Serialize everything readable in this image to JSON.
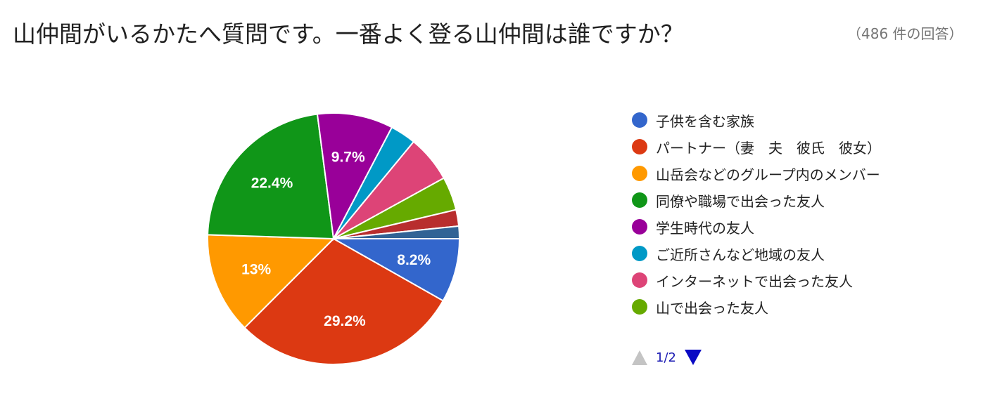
{
  "header": {
    "title": "山仲間がいるかたへ質問です。一番よく登る山仲間は誰ですか？",
    "response_count": "（486 件の回答）"
  },
  "chart_data": {
    "type": "pie",
    "slices": [
      {
        "name": "子供を含む家族",
        "value": 8.2,
        "label": "8.2%",
        "color": "#3366cc"
      },
      {
        "name": "パートナー（妻　夫　彼氏　彼女）",
        "value": 29.2,
        "label": "29.2%",
        "color": "#dc3912"
      },
      {
        "name": "山岳会などのグループ内のメンバー",
        "value": 13.0,
        "label": "13%",
        "color": "#ff9900"
      },
      {
        "name": "同僚や職場で出会った友人",
        "value": 22.4,
        "label": "22.4%",
        "color": "#109618"
      },
      {
        "name": "学生時代の友人",
        "value": 9.7,
        "label": "9.7%",
        "color": "#990099"
      },
      {
        "name": "ご近所さんなど地域の友人",
        "value": 3.3,
        "label": "",
        "color": "#0099c6"
      },
      {
        "name": "インターネットで出会った友人",
        "value": 6.0,
        "label": "",
        "color": "#dd4477"
      },
      {
        "name": "山で出会った友人",
        "value": 4.3,
        "label": "",
        "color": "#66aa00"
      },
      {
        "name": "",
        "value": 2.1,
        "label": "",
        "color": "#b82e2e"
      },
      {
        "name": "",
        "value": 1.6,
        "label": "",
        "color": "#316395"
      }
    ]
  },
  "legend": {
    "items": [
      {
        "label": "子供を含む家族",
        "color": "#3366cc"
      },
      {
        "label": "パートナー（妻　夫　彼氏　彼女）",
        "color": "#dc3912"
      },
      {
        "label": "山岳会などのグループ内のメンバー",
        "color": "#ff9900"
      },
      {
        "label": "同僚や職場で出会った友人",
        "color": "#109618"
      },
      {
        "label": "学生時代の友人",
        "color": "#990099"
      },
      {
        "label": "ご近所さんなど地域の友人",
        "color": "#0099c6"
      },
      {
        "label": "インターネットで出会った友人",
        "color": "#dd4477"
      },
      {
        "label": "山で出会った友人",
        "color": "#66aa00"
      }
    ]
  },
  "pager": {
    "text": "1/2",
    "prev_icon": "triangle-up-icon",
    "next_icon": "triangle-down-icon"
  }
}
